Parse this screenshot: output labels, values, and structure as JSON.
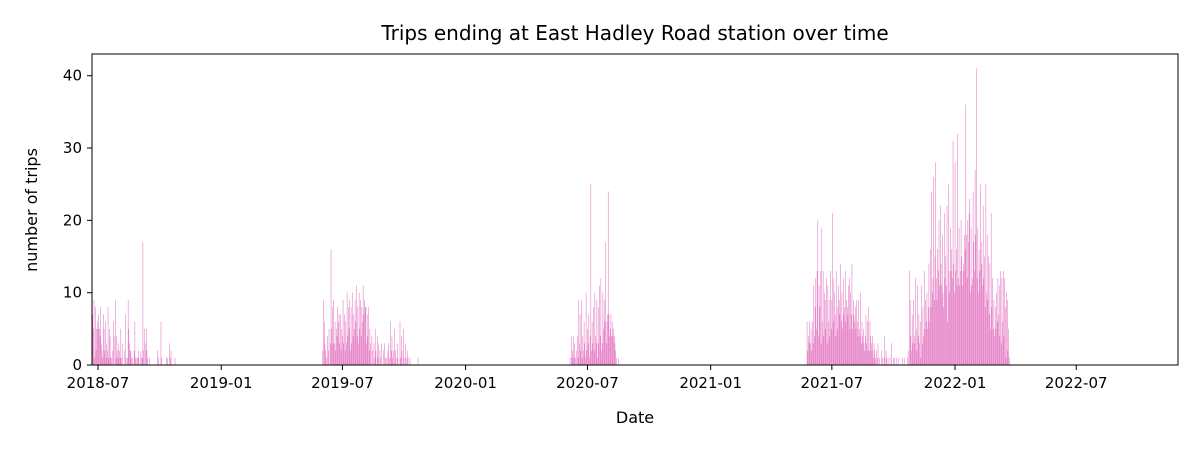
{
  "chart_data": {
    "type": "bar",
    "title": "Trips ending at East Hadley Road station over time",
    "xlabel": "Date",
    "ylabel": "number of trips",
    "ylim": [
      0,
      43
    ],
    "xlim": [
      "2018-06-22",
      "2022-11-30"
    ],
    "yticks": [
      0,
      10,
      20,
      30,
      40
    ],
    "yticklabels": [
      "0",
      "10",
      "20",
      "30",
      "40"
    ],
    "xticks": [
      "2018-07-01",
      "2019-01-01",
      "2019-07-01",
      "2020-01-01",
      "2020-07-01",
      "2021-01-01",
      "2021-07-01",
      "2022-01-01",
      "2022-07-01"
    ],
    "xticklabels": [
      "2018-07",
      "2019-01",
      "2019-07",
      "2020-01",
      "2020-07",
      "2021-01",
      "2021-07",
      "2022-01",
      "2022-07"
    ],
    "bar_color": "#e377c2",
    "grid": false,
    "legend": "none",
    "series": [
      {
        "start": "2018-06-22",
        "values": [
          8,
          7,
          5,
          9,
          1,
          8,
          2,
          5,
          6,
          5,
          7,
          5,
          4,
          8,
          3,
          2,
          1,
          7,
          5,
          2,
          6,
          1,
          3,
          2,
          8,
          1,
          5,
          4,
          1,
          1,
          0,
          2,
          6,
          4,
          0,
          9,
          1,
          4,
          2,
          1,
          3,
          2,
          1,
          5,
          1,
          0,
          3,
          0,
          0,
          2,
          7,
          1,
          0,
          1,
          9,
          5,
          3,
          2,
          2,
          1,
          0,
          1,
          0,
          2,
          6,
          1,
          1,
          0,
          1,
          2,
          1,
          0,
          0,
          2,
          1,
          1,
          17,
          2,
          5,
          0,
          3,
          5,
          2,
          1,
          0,
          0,
          1,
          0,
          0,
          0,
          0,
          0,
          0,
          0,
          0,
          0,
          0,
          0,
          2,
          1,
          0,
          0,
          0,
          6,
          1,
          0,
          0,
          0,
          0,
          0,
          0,
          1,
          0,
          1,
          0,
          0,
          3,
          1,
          2,
          0,
          0,
          0,
          0,
          0,
          1
        ]
      },
      {
        "start": "2019-06-01",
        "values": [
          2,
          0,
          9,
          6,
          3,
          2,
          1,
          0,
          4,
          2,
          5,
          0,
          3,
          16,
          5,
          8,
          3,
          9,
          3,
          6,
          2,
          5,
          4,
          8,
          6,
          7,
          3,
          7,
          2,
          5,
          4,
          9,
          3,
          7,
          2,
          6,
          3,
          10,
          4,
          8,
          5,
          9,
          2,
          8,
          3,
          10,
          4,
          7,
          5,
          9,
          6,
          11,
          4,
          8,
          3,
          10,
          5,
          9,
          4,
          8,
          6,
          11,
          7,
          9,
          8,
          8,
          3,
          7,
          4,
          8,
          2,
          5,
          3,
          0,
          4,
          2,
          0,
          3,
          1,
          5,
          2,
          0,
          4,
          1,
          3,
          0,
          2,
          1,
          3,
          0,
          0,
          2,
          0,
          3,
          1,
          0,
          1,
          0,
          2,
          3,
          1,
          0,
          6,
          2,
          4,
          1,
          2,
          0,
          5,
          2,
          1,
          0,
          3,
          1,
          0,
          0,
          6,
          1,
          4,
          2,
          0,
          5,
          1,
          0,
          3,
          1,
          0,
          2,
          1,
          0,
          0,
          1,
          0,
          0,
          0,
          0,
          0,
          0,
          0,
          0,
          0,
          0,
          0,
          1
        ]
      },
      {
        "start": "2020-06-05",
        "values": [
          1,
          0,
          4,
          1,
          2,
          4,
          1,
          3,
          1,
          0,
          2,
          4,
          1,
          9,
          3,
          7,
          2,
          9,
          1,
          4,
          2,
          6,
          3,
          1,
          10,
          2,
          5,
          3,
          7,
          1,
          4,
          25,
          2,
          6,
          3,
          8,
          2,
          10,
          4,
          3,
          9,
          1,
          8,
          3,
          11,
          4,
          12,
          2,
          3,
          10,
          5,
          9,
          6,
          17,
          3,
          6,
          7,
          24,
          7,
          4,
          5,
          7,
          4,
          6,
          4,
          5,
          4,
          3,
          2,
          1,
          0,
          0,
          1
        ]
      },
      {
        "start": "2021-05-25",
        "values": [
          6,
          2,
          4,
          3,
          6,
          3,
          5,
          2,
          6,
          3,
          11,
          4,
          8,
          12,
          5,
          13,
          20,
          4,
          11,
          8,
          13,
          3,
          19,
          6,
          13,
          4,
          10,
          9,
          5,
          12,
          3,
          11,
          6,
          9,
          4,
          13,
          5,
          9,
          21,
          6,
          12,
          10,
          7,
          4,
          13,
          5,
          8,
          11,
          9,
          7,
          14,
          6,
          10,
          5,
          12,
          7,
          8,
          13,
          6,
          9,
          8,
          7,
          11,
          12,
          5,
          10,
          7,
          14,
          5,
          9,
          7,
          6,
          8,
          5,
          9,
          6,
          4,
          9,
          5,
          4,
          10,
          3,
          6,
          4,
          5,
          3,
          2,
          4,
          7,
          3,
          6,
          2,
          8,
          2,
          6,
          4,
          3,
          2,
          4,
          1,
          3,
          2,
          1,
          0,
          2,
          1,
          3,
          0,
          1,
          0,
          0,
          2,
          0,
          1,
          0,
          1,
          4,
          0,
          2,
          1,
          0,
          1,
          0,
          0,
          1,
          0,
          3,
          0,
          0,
          1,
          0,
          1,
          0,
          0,
          1,
          0,
          0,
          1,
          0,
          0,
          0,
          0,
          1,
          0,
          0,
          1,
          0,
          0,
          0,
          0,
          1,
          2,
          0,
          13,
          9,
          4,
          2,
          7,
          3,
          9,
          4,
          3,
          12,
          5,
          2,
          11,
          4,
          7,
          3,
          6,
          1,
          11,
          3,
          8,
          4,
          13,
          5,
          9,
          6,
          10,
          5,
          8,
          14,
          6,
          16,
          8,
          24,
          10,
          12,
          26,
          9,
          15,
          28,
          12,
          9,
          16,
          13,
          20,
          11,
          22,
          14,
          11,
          18,
          10,
          8,
          21,
          12,
          15,
          11,
          22,
          6,
          25,
          13,
          10,
          19,
          13,
          16,
          12,
          31,
          14,
          10,
          28,
          13,
          16,
          11,
          32,
          12,
          19,
          11,
          13,
          20,
          15,
          11,
          13,
          14,
          18,
          16,
          36,
          18,
          12,
          20,
          17,
          21,
          23,
          10,
          19,
          11,
          12,
          24,
          17,
          13,
          27,
          18,
          41,
          12,
          19,
          10,
          16,
          13,
          25,
          17,
          14,
          11,
          22,
          12,
          15,
          8,
          25,
          10,
          18,
          9,
          15,
          7,
          14,
          5,
          21,
          8,
          12,
          5,
          9,
          4,
          8,
          5,
          10,
          6,
          12,
          7,
          11,
          4,
          13,
          3,
          12,
          6,
          13,
          4,
          12,
          8,
          1,
          10,
          9,
          2,
          5,
          1,
          0
        ]
      }
    ]
  }
}
